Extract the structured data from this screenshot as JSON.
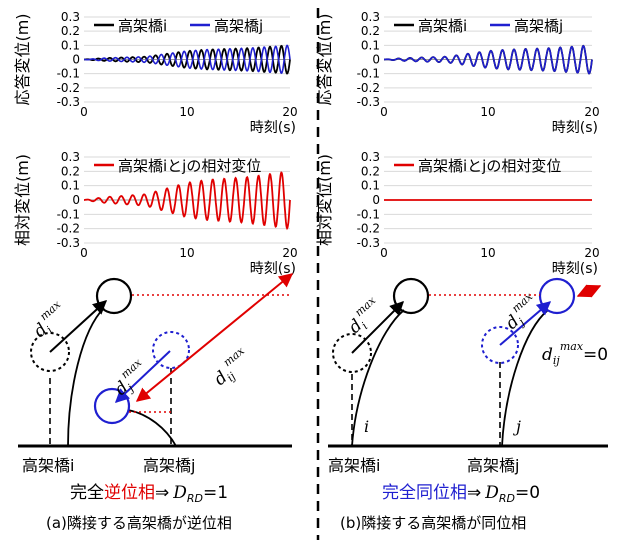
{
  "axis": {
    "yticks": [
      "0.3",
      "0.2",
      "0.1",
      "0",
      "-0.1",
      "-0.2",
      "-0.3"
    ],
    "xticks": [
      "0",
      "10",
      "20"
    ],
    "xlabel": "時刻(s)",
    "ylabel_resp": "応答変位(m)",
    "ylabel_rel": "相対変位(m)"
  },
  "legend": {
    "bridge_i": "高架橋i",
    "bridge_j": "高架橋j",
    "relative": "高架橋iとjの相対変位"
  },
  "colors": {
    "i": "#000000",
    "j": "#1f1fd0",
    "rel": "#e00000"
  },
  "diagram": {
    "d_i": "d",
    "d_i_sub": "i",
    "d_j": "d",
    "d_j_sub": "j",
    "d_ij": "d",
    "d_ij_sub": "ij",
    "sup_max": "max",
    "zero": "=0",
    "pier_i": "i",
    "pier_j": "j"
  },
  "left": {
    "label_i": "高架橋i",
    "label_j": "高架橋j",
    "phase_pre": "完全",
    "phase_word": "逆位相",
    "phase_arrow": "⇒",
    "rd_symbol": "D",
    "rd_sub": "RD",
    "rd_value": "=1",
    "caption": "(a)隣接する高架橋が逆位相"
  },
  "right": {
    "label_i": "高架橋i",
    "label_j": "高架橋j",
    "phase_pre": "完全",
    "phase_word": "同位相",
    "phase_arrow": "⇒",
    "rd_symbol": "D",
    "rd_sub": "RD",
    "rd_value": "=0",
    "caption": "(b)隣接する高架橋が同位相"
  },
  "chart_data": [
    {
      "type": "line",
      "panel": "left-response",
      "xlabel": "時刻(s)",
      "ylabel": "応答変位(m)",
      "xlim": [
        0,
        20
      ],
      "ylim": [
        -0.3,
        0.3
      ],
      "series": [
        {
          "name": "高架橋i",
          "x": [
            0,
            2,
            4,
            6,
            8,
            10,
            12,
            14,
            16,
            18,
            20
          ],
          "amplitude": [
            0,
            0.01,
            0.015,
            0.02,
            0.04,
            0.06,
            0.07,
            0.075,
            0.08,
            0.09,
            0.1
          ]
        },
        {
          "name": "高架橋j",
          "x": [
            0,
            2,
            4,
            6,
            8,
            10,
            12,
            14,
            16,
            18,
            20
          ],
          "amplitude": [
            0,
            0.01,
            0.015,
            0.02,
            0.04,
            0.06,
            0.07,
            0.075,
            0.08,
            0.09,
            0.1
          ],
          "phase": "opposite"
        }
      ]
    },
    {
      "type": "line",
      "panel": "left-relative",
      "xlabel": "時刻(s)",
      "ylabel": "相対変位(m)",
      "xlim": [
        0,
        20
      ],
      "ylim": [
        -0.3,
        0.3
      ],
      "series": [
        {
          "name": "高架橋iとjの相対変位",
          "x": [
            0,
            2,
            4,
            6,
            8,
            10,
            12,
            14,
            16,
            18,
            20
          ],
          "amplitude": [
            0,
            0.02,
            0.03,
            0.04,
            0.08,
            0.12,
            0.14,
            0.15,
            0.16,
            0.18,
            0.2
          ]
        }
      ]
    },
    {
      "type": "line",
      "panel": "right-response",
      "xlabel": "時刻(s)",
      "ylabel": "応答変位(m)",
      "xlim": [
        0,
        20
      ],
      "ylim": [
        -0.3,
        0.3
      ],
      "series": [
        {
          "name": "高架橋i",
          "x": [
            0,
            2,
            4,
            6,
            8,
            10,
            12,
            14,
            16,
            18,
            20
          ],
          "amplitude": [
            0,
            0.01,
            0.015,
            0.02,
            0.04,
            0.06,
            0.07,
            0.075,
            0.08,
            0.09,
            0.1
          ]
        },
        {
          "name": "高架橋j",
          "x": [
            0,
            2,
            4,
            6,
            8,
            10,
            12,
            14,
            16,
            18,
            20
          ],
          "amplitude": [
            0,
            0.01,
            0.015,
            0.02,
            0.04,
            0.06,
            0.07,
            0.075,
            0.08,
            0.09,
            0.1
          ],
          "phase": "same"
        }
      ]
    },
    {
      "type": "line",
      "panel": "right-relative",
      "xlabel": "時刻(s)",
      "ylabel": "相対変位(m)",
      "xlim": [
        0,
        20
      ],
      "ylim": [
        -0.3,
        0.3
      ],
      "series": [
        {
          "name": "高架橋iとjの相対変位",
          "x": [
            0,
            20
          ],
          "y": [
            0,
            0
          ]
        }
      ]
    }
  ]
}
